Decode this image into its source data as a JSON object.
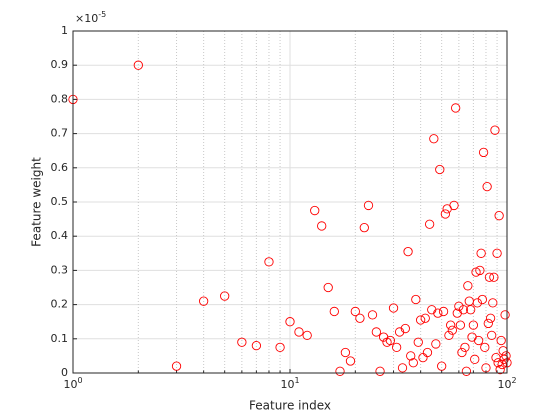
{
  "chart_data": {
    "type": "scatter",
    "xlabel": "Feature index",
    "ylabel": "Feature weight",
    "x_scale": "log",
    "xlim": [
      1,
      100
    ],
    "xticks": [
      {
        "value": 1,
        "label": "10",
        "exponent": "0"
      },
      {
        "value": 10,
        "label": "10",
        "exponent": "1"
      },
      {
        "value": 100,
        "label": "10",
        "exponent": "2"
      }
    ],
    "xminorticks": [
      2,
      3,
      4,
      5,
      6,
      7,
      8,
      9,
      20,
      30,
      40,
      50,
      60,
      70,
      80,
      90
    ],
    "ylim": [
      0,
      1
    ],
    "yticks": [
      0,
      0.1,
      0.2,
      0.3,
      0.4,
      0.5,
      0.6,
      0.7,
      0.8,
      0.9,
      1
    ],
    "y_exponent_label": {
      "base": "×10",
      "exponent": "-5"
    },
    "grid": true,
    "color": "#ff0000",
    "x": [
      1,
      2,
      3,
      4,
      5,
      6,
      7,
      8,
      9,
      10,
      11,
      12,
      13,
      14,
      15,
      16,
      17,
      18,
      19,
      20,
      21,
      22,
      23,
      24,
      25,
      26,
      27,
      28,
      29,
      30,
      31,
      32,
      33,
      34,
      35,
      36,
      37,
      38,
      39,
      40,
      41,
      42,
      43,
      44,
      45,
      46,
      47,
      48,
      49,
      50,
      51,
      52,
      53,
      54,
      55,
      56,
      57,
      58,
      59,
      60,
      61,
      62,
      63,
      64,
      65,
      66,
      67,
      68,
      69,
      70,
      71,
      72,
      73,
      74,
      75,
      76,
      77,
      78,
      79,
      80,
      81,
      82,
      83,
      84,
      85,
      86,
      87,
      88,
      89,
      90,
      91,
      92,
      93,
      94,
      95,
      96,
      97,
      98,
      99,
      100
    ],
    "values": [
      0.8,
      0.9,
      0.02,
      0.21,
      0.225,
      0.09,
      0.08,
      0.325,
      0.075,
      0.15,
      0.12,
      0.11,
      0.475,
      0.43,
      0.25,
      0.18,
      0.005,
      0.06,
      0.035,
      0.18,
      0.16,
      0.425,
      0.49,
      0.17,
      0.12,
      0.005,
      0.105,
      0.09,
      0.095,
      0.19,
      0.075,
      0.12,
      0.015,
      0.13,
      0.355,
      0.05,
      0.03,
      0.215,
      0.09,
      0.155,
      0.045,
      0.16,
      0.06,
      0.435,
      0.185,
      0.685,
      0.085,
      0.175,
      0.595,
      0.02,
      0.18,
      0.465,
      0.48,
      0.11,
      0.14,
      0.125,
      0.49,
      0.775,
      0.175,
      0.195,
      0.14,
      0.06,
      0.185,
      0.075,
      0.005,
      0.255,
      0.21,
      0.185,
      0.105,
      0.14,
      0.04,
      0.295,
      0.205,
      0.095,
      0.3,
      0.35,
      0.215,
      0.645,
      0.075,
      0.015,
      0.545,
      0.145,
      0.28,
      0.16,
      0.11,
      0.205,
      0.28,
      0.71,
      0.045,
      0.35,
      0.03,
      0.46,
      0.01,
      0.095,
      0.025,
      0.065,
      0.04,
      0.17,
      0.05,
      0.03
    ]
  }
}
